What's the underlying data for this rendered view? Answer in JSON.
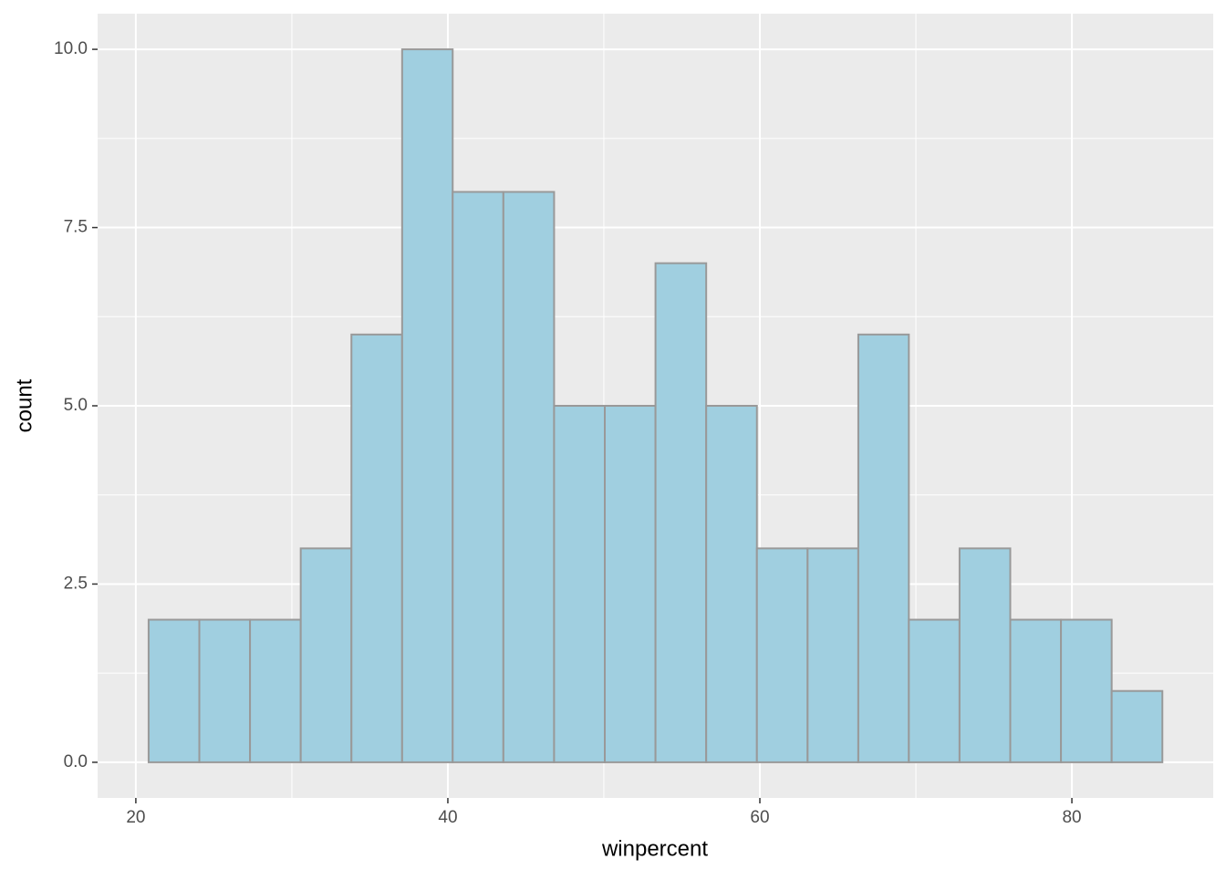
{
  "chart_data": {
    "type": "histogram",
    "x_label": "winpercent",
    "y_label": "count",
    "bins": [
      20.82,
      24.07,
      27.32,
      30.57,
      33.82,
      37.07,
      40.31,
      43.56,
      46.81,
      50.06,
      53.31,
      56.56,
      59.81,
      63.06,
      66.31,
      69.55,
      72.8,
      76.05,
      79.3,
      82.55,
      85.8
    ],
    "counts": [
      2,
      2,
      2,
      3,
      6,
      10,
      8,
      8,
      5,
      5,
      7,
      5,
      3,
      3,
      6,
      2,
      3,
      2,
      2,
      1
    ],
    "color": "#a0cfe0",
    "edge_color": "#999999",
    "xlim": [
      17.55,
      89.06
    ],
    "xticks": [
      20,
      40,
      60,
      80
    ],
    "ylim": [
      -0.5,
      10.5
    ],
    "yticks": [
      {
        "value": 0,
        "label": "0.0"
      },
      2.5,
      {
        "value": 5,
        "label": "5.0"
      },
      7.5,
      {
        "value": 10,
        "label": "10.0"
      }
    ],
    "grid": true
  }
}
